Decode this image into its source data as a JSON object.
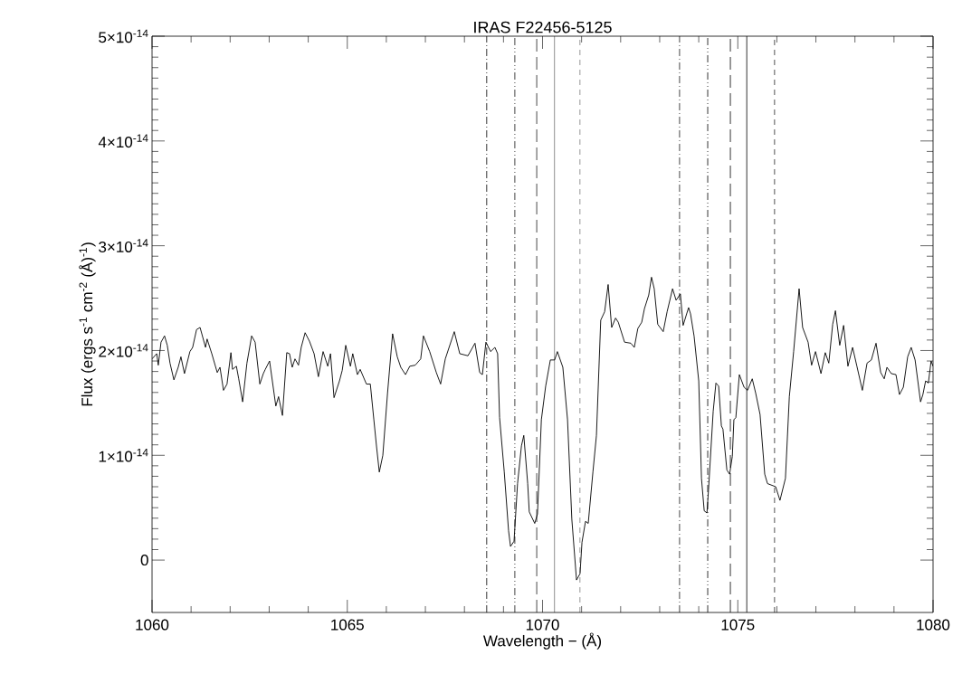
{
  "chart_data": {
    "type": "line",
    "title": "IRAS F22456-5125",
    "xlabel": "Wavelength − (Å)",
    "ylabel": "Flux (ergs s$^{-1}$ cm$^{-2}$ (Å)$^{-1}$)",
    "xlim": [
      1060,
      1080
    ],
    "ylim": [
      -5e-15,
      5e-14
    ],
    "xticks": [
      1060,
      1065,
      1070,
      1075,
      1080
    ],
    "yticks": [
      {
        "value": 0,
        "label": "0"
      },
      {
        "value": 1e-14,
        "label": "1×10$^{-14}$"
      },
      {
        "value": 2e-14,
        "label": "2×10$^{-14}$"
      },
      {
        "value": 3e-14,
        "label": "3×10$^{-14}$"
      },
      {
        "value": 4e-14,
        "label": "4×10$^{-14}$"
      },
      {
        "value": 5e-14,
        "label": "5×10$^{-14}$"
      }
    ],
    "marker": "none",
    "line_style": "solid",
    "series": [
      {
        "color": "#000000",
        "x": [
          1060.0,
          1060.12,
          1060.16,
          1060.23,
          1060.32,
          1060.39,
          1060.46,
          1060.56,
          1060.67,
          1060.74,
          1060.83,
          1060.97,
          1061.04,
          1061.14,
          1061.23,
          1061.37,
          1061.41,
          1061.53,
          1061.67,
          1061.74,
          1061.83,
          1061.92,
          1062.02,
          1062.06,
          1062.16,
          1062.22,
          1062.32,
          1062.43,
          1062.5,
          1062.55,
          1062.64,
          1062.76,
          1062.85,
          1062.9,
          1063.01,
          1063.17,
          1063.24,
          1063.34,
          1063.45,
          1063.52,
          1063.59,
          1063.66,
          1063.75,
          1063.82,
          1063.92,
          1064.03,
          1064.15,
          1064.26,
          1064.38,
          1064.5,
          1064.57,
          1064.66,
          1064.8,
          1064.87,
          1064.96,
          1065.08,
          1065.14,
          1065.26,
          1065.33,
          1065.49,
          1065.59,
          1065.68,
          1065.75,
          1065.82,
          1065.91,
          1066.03,
          1066.16,
          1066.28,
          1066.37,
          1066.49,
          1066.6,
          1066.74,
          1066.88,
          1066.95,
          1067.11,
          1067.28,
          1067.39,
          1067.51,
          1067.74,
          1067.88,
          1068.09,
          1068.27,
          1068.39,
          1068.46,
          1068.55,
          1068.67,
          1068.78,
          1068.85,
          1068.9,
          1069.02,
          1069.13,
          1069.18,
          1069.27,
          1069.36,
          1069.46,
          1069.52,
          1069.62,
          1069.66,
          1069.8,
          1069.87,
          1069.97,
          1070.08,
          1070.2,
          1070.31,
          1070.38,
          1070.52,
          1070.64,
          1070.75,
          1070.87,
          1070.96,
          1071.01,
          1071.1,
          1071.17,
          1071.29,
          1071.38,
          1071.49,
          1071.59,
          1071.68,
          1071.77,
          1071.87,
          1071.94,
          1072.1,
          1072.26,
          1072.35,
          1072.44,
          1072.54,
          1072.61,
          1072.72,
          1072.79,
          1072.86,
          1072.95,
          1073.09,
          1073.19,
          1073.33,
          1073.42,
          1073.53,
          1073.6,
          1073.74,
          1073.79,
          1073.88,
          1074.0,
          1074.07,
          1074.14,
          1074.21,
          1074.25,
          1074.37,
          1074.44,
          1074.51,
          1074.58,
          1074.62,
          1074.72,
          1074.79,
          1074.86,
          1074.9,
          1074.95,
          1075.04,
          1075.16,
          1075.25,
          1075.37,
          1075.46,
          1075.57,
          1075.69,
          1075.76,
          1075.97,
          1076.08,
          1076.22,
          1076.32,
          1076.43,
          1076.57,
          1076.66,
          1076.8,
          1076.89,
          1076.99,
          1077.13,
          1077.24,
          1077.33,
          1077.43,
          1077.5,
          1077.61,
          1077.71,
          1077.82,
          1077.94,
          1078.05,
          1078.19,
          1078.31,
          1078.42,
          1078.54,
          1078.66,
          1078.75,
          1078.82,
          1078.93,
          1079.05,
          1079.14,
          1079.24,
          1079.35,
          1079.44,
          1079.54,
          1079.68,
          1079.74,
          1079.81,
          1079.88,
          1079.95,
          1080.0
        ],
        "values": [
          1.92e-14,
          1.97e-14,
          1.86e-14,
          2.08e-14,
          2.14e-14,
          2.05e-14,
          1.88e-14,
          1.72e-14,
          1.84e-14,
          1.94e-14,
          1.78e-14,
          1.99e-14,
          2.03e-14,
          2.2e-14,
          2.22e-14,
          2.03e-14,
          2.11e-14,
          1.97e-14,
          1.79e-14,
          1.84e-14,
          1.62e-14,
          1.68e-14,
          1.98e-14,
          1.82e-14,
          1.85e-14,
          1.73e-14,
          1.51e-14,
          1.88e-14,
          2.03e-14,
          2.14e-14,
          2.08e-14,
          1.68e-14,
          1.78e-14,
          1.82e-14,
          1.9e-14,
          1.47e-14,
          1.56e-14,
          1.38e-14,
          1.98e-14,
          1.97e-14,
          1.84e-14,
          1.92e-14,
          1.86e-14,
          2.03e-14,
          2.17e-14,
          2.09e-14,
          1.97e-14,
          1.75e-14,
          1.99e-14,
          1.85e-14,
          1.97e-14,
          1.55e-14,
          1.71e-14,
          1.81e-14,
          2.05e-14,
          1.85e-14,
          1.97e-14,
          1.77e-14,
          1.82e-14,
          1.68e-14,
          1.68e-14,
          1.34e-14,
          1.08e-14,
          8.4e-15,
          1e-14,
          1.59e-14,
          2.16e-14,
          1.94e-14,
          1.84e-14,
          1.77e-14,
          1.85e-14,
          1.86e-14,
          1.92e-14,
          2.14e-14,
          1.99e-14,
          1.79e-14,
          1.68e-14,
          1.92e-14,
          2.18e-14,
          1.97e-14,
          1.95e-14,
          2.07e-14,
          1.79e-14,
          1.77e-14,
          2.08e-14,
          1.99e-14,
          2.03e-14,
          1.97e-14,
          1.36e-14,
          8.4e-15,
          2.8e-15,
          1.3e-15,
          1.8e-15,
          7.3e-15,
          1.09e-14,
          1.19e-14,
          7.3e-15,
          4.6e-15,
          3.5e-15,
          4.4e-15,
          1.34e-14,
          1.66e-14,
          1.91e-14,
          1.91e-14,
          1.99e-14,
          1.84e-14,
          1.34e-14,
          3.9e-15,
          -1.9e-15,
          -1.3e-15,
          1.7e-15,
          3.7e-15,
          3.5e-15,
          8.4e-15,
          1.19e-14,
          2.29e-14,
          2.37e-14,
          2.63e-14,
          2.22e-14,
          2.31e-14,
          2.27e-14,
          2.08e-14,
          2.07e-14,
          2.03e-14,
          2.21e-14,
          2.27e-14,
          2.4e-14,
          2.53e-14,
          2.7e-14,
          2.59e-14,
          2.25e-14,
          2.18e-14,
          2.37e-14,
          2.59e-14,
          2.48e-14,
          2.54e-14,
          2.24e-14,
          2.41e-14,
          2.35e-14,
          2.14e-14,
          1.71e-14,
          7.8e-15,
          4.7e-15,
          4.5e-15,
          6.7e-15,
          1.42e-14,
          1.69e-14,
          1.66e-14,
          1.28e-14,
          1.25e-14,
          8.6e-15,
          8.2e-15,
          9.9e-15,
          1.34e-14,
          1.36e-14,
          1.77e-14,
          1.65e-14,
          1.62e-14,
          1.73e-14,
          1.59e-14,
          1.39e-14,
          8.2e-15,
          7.3e-15,
          7e-15,
          5.7e-15,
          7.8e-15,
          1.56e-14,
          1.99e-14,
          2.59e-14,
          2.22e-14,
          2.08e-14,
          1.86e-14,
          1.99e-14,
          1.78e-14,
          1.98e-14,
          1.88e-14,
          2.25e-14,
          2.38e-14,
          2.05e-14,
          2.24e-14,
          1.85e-14,
          2.03e-14,
          1.85e-14,
          1.62e-14,
          1.88e-14,
          1.91e-14,
          2.07e-14,
          1.79e-14,
          1.73e-14,
          1.84e-14,
          1.78e-14,
          1.77e-14,
          1.58e-14,
          1.65e-14,
          1.94e-14,
          2.03e-14,
          1.91e-14,
          1.51e-14,
          1.58e-14,
          1.71e-14,
          1.69e-14,
          1.9e-14,
          1.85e-14
        ]
      }
    ],
    "ref_lines": [
      {
        "axis": "x",
        "value": 1068.57,
        "line_style": "dashdot",
        "color": "#000000"
      },
      {
        "axis": "x",
        "value": 1069.29,
        "line_style": "dashdotdot",
        "color": "#000000"
      },
      {
        "axis": "x",
        "value": 1069.85,
        "line_style": "longdash",
        "color": "#000000"
      },
      {
        "axis": "x",
        "value": 1070.31,
        "line_style": "solid",
        "color": "#000000"
      },
      {
        "axis": "x",
        "value": 1070.96,
        "line_style": "dashed",
        "color": "#000000"
      },
      {
        "axis": "x",
        "value": 1073.51,
        "line_style": "dashdot",
        "color": "#000000"
      },
      {
        "axis": "x",
        "value": 1074.23,
        "line_style": "dashdotdot",
        "color": "#000000"
      },
      {
        "axis": "x",
        "value": 1074.81,
        "line_style": "longdash",
        "color": "#000000"
      },
      {
        "axis": "x",
        "value": 1075.23,
        "line_style": "solid",
        "color": "#000000"
      },
      {
        "axis": "x",
        "value": 1075.94,
        "line_style": "dashed",
        "color": "#000000"
      }
    ]
  }
}
